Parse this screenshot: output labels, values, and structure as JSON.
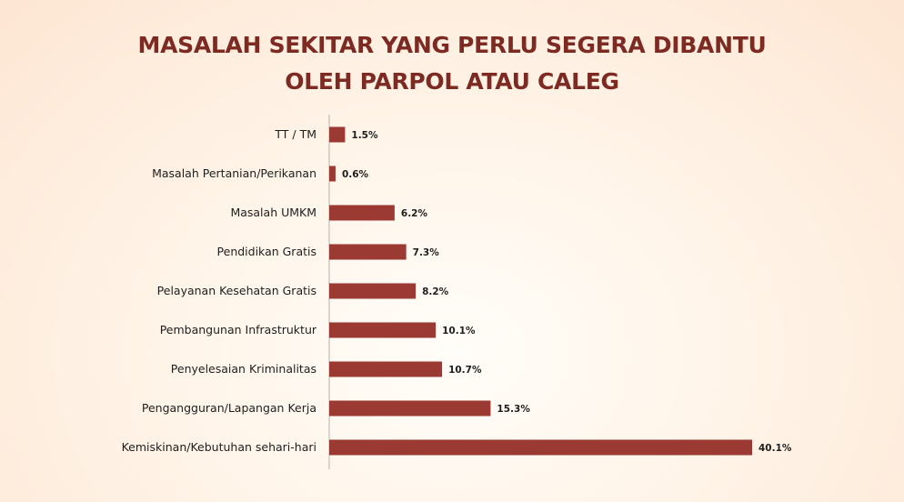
{
  "chart_data": {
    "type": "bar",
    "orientation": "horizontal",
    "title": [
      "MASALAH SEKITAR YANG PERLU SEGERA DIBANTU",
      "OLEH PARPOL ATAU CALEG"
    ],
    "categories": [
      "TT / TM",
      "Masalah Pertanian/Perikanan",
      "Masalah UMKM",
      "Pendidikan Gratis",
      "Pelayanan Kesehatan Gratis",
      "Pembangunan Infrastruktur",
      "Penyelesaian Kriminalitas",
      "Pengangguran/Lapangan Kerja",
      "Kemiskinan/Kebutuhan sehari-hari"
    ],
    "values": [
      1.5,
      0.6,
      6.2,
      7.3,
      8.2,
      10.1,
      10.7,
      15.3,
      40.1
    ],
    "value_labels": [
      "1.5%",
      "0.6%",
      "6.2%",
      "7.3%",
      "8.2%",
      "10.1%",
      "10.7%",
      "15.3%",
      "40.1%"
    ],
    "xlim": [
      0,
      40.1
    ],
    "grid": false,
    "bar_color": "#9b3a33",
    "axis_color": "#b0b0b0",
    "title_color": "#7d2a22"
  }
}
